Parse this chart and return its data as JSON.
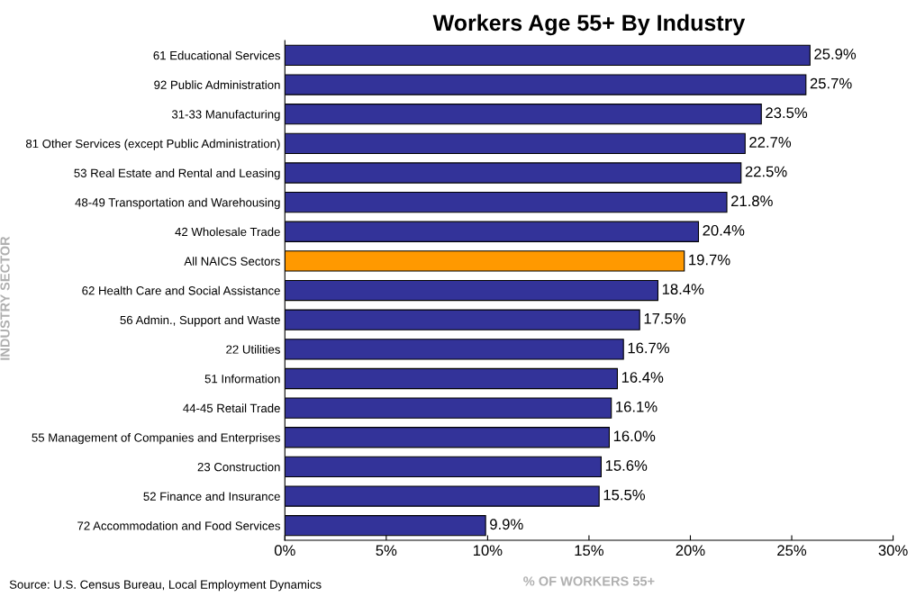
{
  "chart_data": {
    "type": "bar",
    "orientation": "horizontal",
    "title": "Workers Age 55+ By Industry",
    "xlabel": "% OF WORKERS 55+",
    "ylabel": "INDUSTRY SECTOR",
    "categories": [
      "61 Educational Services",
      "92 Public Administration",
      "31-33 Manufacturing",
      "81 Other Services (except Public Administration)",
      "53 Real Estate and Rental and Leasing",
      "48-49 Transportation and Warehousing",
      "42 Wholesale Trade",
      "All NAICS Sectors",
      "62 Health Care and Social Assistance",
      "56 Admin., Support and Waste",
      "22 Utilities",
      "51 Information",
      "44-45 Retail Trade",
      "55 Management of Companies and Enterprises",
      "23 Construction",
      "52 Finance and Insurance",
      "72 Accommodation and Food Services"
    ],
    "values": [
      25.9,
      25.7,
      23.5,
      22.7,
      22.5,
      21.8,
      20.4,
      19.7,
      18.4,
      17.5,
      16.7,
      16.4,
      16.1,
      16.0,
      15.6,
      15.5,
      9.9
    ],
    "value_labels": [
      "25.9%",
      "25.7%",
      "23.5%",
      "22.7%",
      "22.5%",
      "21.8%",
      "20.4%",
      "19.7%",
      "18.4%",
      "17.5%",
      "16.7%",
      "16.4%",
      "16.1%",
      "16.0%",
      "15.6%",
      "15.5%",
      "9.9%"
    ],
    "colors": [
      "#333399",
      "#333399",
      "#333399",
      "#333399",
      "#333399",
      "#333399",
      "#333399",
      "#ff9900",
      "#333399",
      "#333399",
      "#333399",
      "#333399",
      "#333399",
      "#333399",
      "#333399",
      "#333399",
      "#333399"
    ],
    "xlim": [
      0,
      30
    ],
    "xticks": [
      {
        "value": 0,
        "label": "0%"
      },
      {
        "value": 5,
        "label": "5%"
      },
      {
        "value": 10,
        "label": "10%"
      },
      {
        "value": 15,
        "label": "15%"
      },
      {
        "value": 20,
        "label": "20%"
      },
      {
        "value": 25,
        "label": "25%"
      },
      {
        "value": 30,
        "label": "30%"
      }
    ],
    "grid": false,
    "legend": false,
    "annotations": [
      "Source: U.S. Census Bureau, Local Employment Dynamics"
    ]
  }
}
